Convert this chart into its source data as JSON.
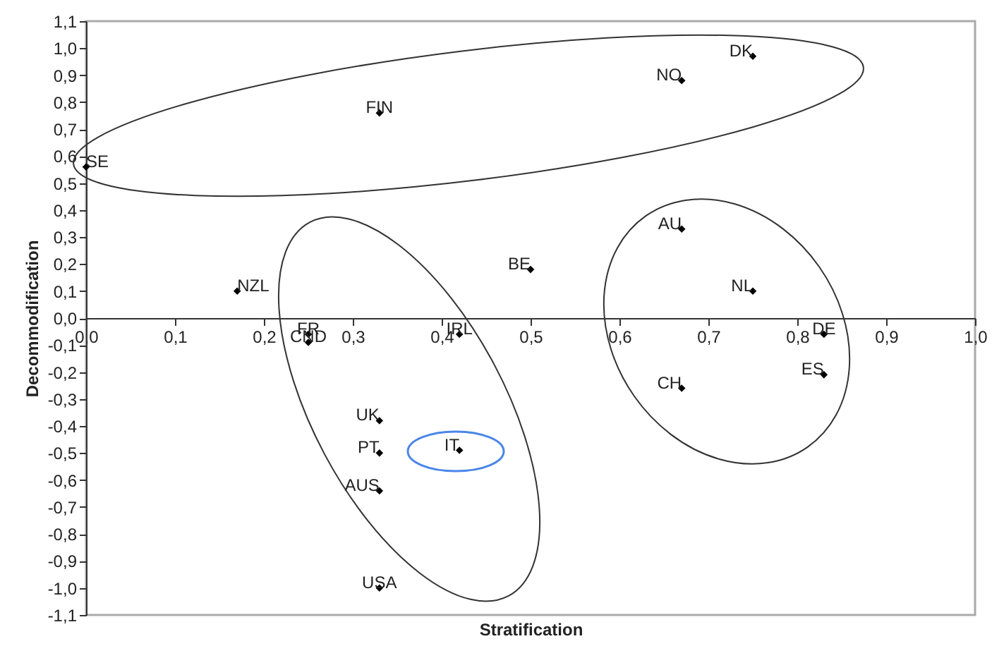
{
  "chart_data": {
    "type": "scatter",
    "xlabel": "Stratification",
    "ylabel": "Decommodification",
    "marker": "diamond",
    "xlim": [
      0,
      1.0
    ],
    "ylim": [
      -1.1,
      1.1
    ],
    "xticks": [
      {
        "value": 0,
        "label": "0,0"
      },
      {
        "value": 0.1,
        "label": "0,1"
      },
      {
        "value": 0.2,
        "label": "0,2"
      },
      {
        "value": 0.3,
        "label": "0,3"
      },
      {
        "value": 0.4,
        "label": "0,4"
      },
      {
        "value": 0.5,
        "label": "0,5"
      },
      {
        "value": 0.6,
        "label": "0,6"
      },
      {
        "value": 0.7,
        "label": "0,7"
      },
      {
        "value": 0.8,
        "label": "0,8"
      },
      {
        "value": 0.9,
        "label": "0,9"
      },
      {
        "value": 1.0,
        "label": "1,0"
      }
    ],
    "yticks": [
      {
        "value": -1.1,
        "label": "-1,1"
      },
      {
        "value": -1.0,
        "label": "-1,0"
      },
      {
        "value": -0.9,
        "label": "-0,9"
      },
      {
        "value": -0.8,
        "label": "-0,8"
      },
      {
        "value": -0.7,
        "label": "-0,7"
      },
      {
        "value": -0.6,
        "label": "-0,6"
      },
      {
        "value": -0.5,
        "label": "-0,5"
      },
      {
        "value": -0.4,
        "label": "-0,4"
      },
      {
        "value": -0.3,
        "label": "-0,3"
      },
      {
        "value": -0.2,
        "label": "-0,2"
      },
      {
        "value": -0.1,
        "label": "-0,1"
      },
      {
        "value": 0,
        "label": "0,0"
      },
      {
        "value": 0.1,
        "label": "0,1"
      },
      {
        "value": 0.2,
        "label": "0,2"
      },
      {
        "value": 0.3,
        "label": "0,3"
      },
      {
        "value": 0.4,
        "label": "0,4"
      },
      {
        "value": 0.5,
        "label": "0,5"
      },
      {
        "value": 0.6,
        "label": "0,6"
      },
      {
        "value": 0.7,
        "label": "0,7"
      },
      {
        "value": 0.8,
        "label": "0,8"
      },
      {
        "value": 0.9,
        "label": "0,9"
      },
      {
        "value": 1.0,
        "label": "1,0"
      },
      {
        "value": 1.1,
        "label": "1,1"
      }
    ],
    "series": [
      {
        "color": "#000000",
        "x": [
          0,
          0.33,
          0.67,
          0.75,
          0.17,
          0.5,
          0.67,
          0.75,
          0.83,
          0.83,
          0.67,
          0.25,
          0.25,
          0.42,
          0.33,
          0.33,
          0.33,
          0.42,
          0.33
        ],
        "values": [
          0.56,
          0.76,
          0.88,
          0.97,
          0.1,
          0.18,
          0.33,
          0.1,
          -0.06,
          -0.21,
          -0.26,
          -0.06,
          -0.09,
          -0.06,
          -0.38,
          -0.5,
          -0.64,
          -0.49,
          -1.0
        ],
        "value_labels": [
          "SE",
          "FIN",
          "NO",
          "DK",
          "NZL",
          "BE",
          "AU",
          "NL",
          "DE",
          "ES",
          "CH",
          "FR",
          "CND",
          "IRL",
          "UK",
          "PT",
          "AUS",
          "IT",
          "USA"
        ]
      }
    ]
  }
}
